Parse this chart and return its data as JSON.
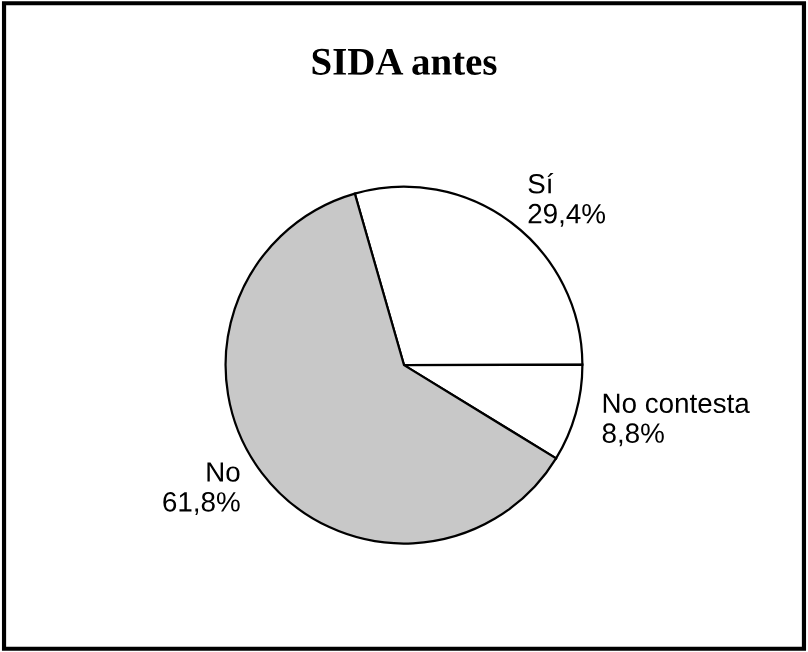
{
  "chart_data": {
    "type": "pie",
    "title": "SIDA antes",
    "categories": [
      "Sí",
      "No contesta",
      "No"
    ],
    "values": [
      29.4,
      8.8,
      61.8
    ],
    "value_labels": [
      "29,4%",
      "8,8%",
      "61,8%"
    ],
    "colors": [
      "#ffffff",
      "#ffffff",
      "#c8c8c8"
    ],
    "legend": false
  }
}
